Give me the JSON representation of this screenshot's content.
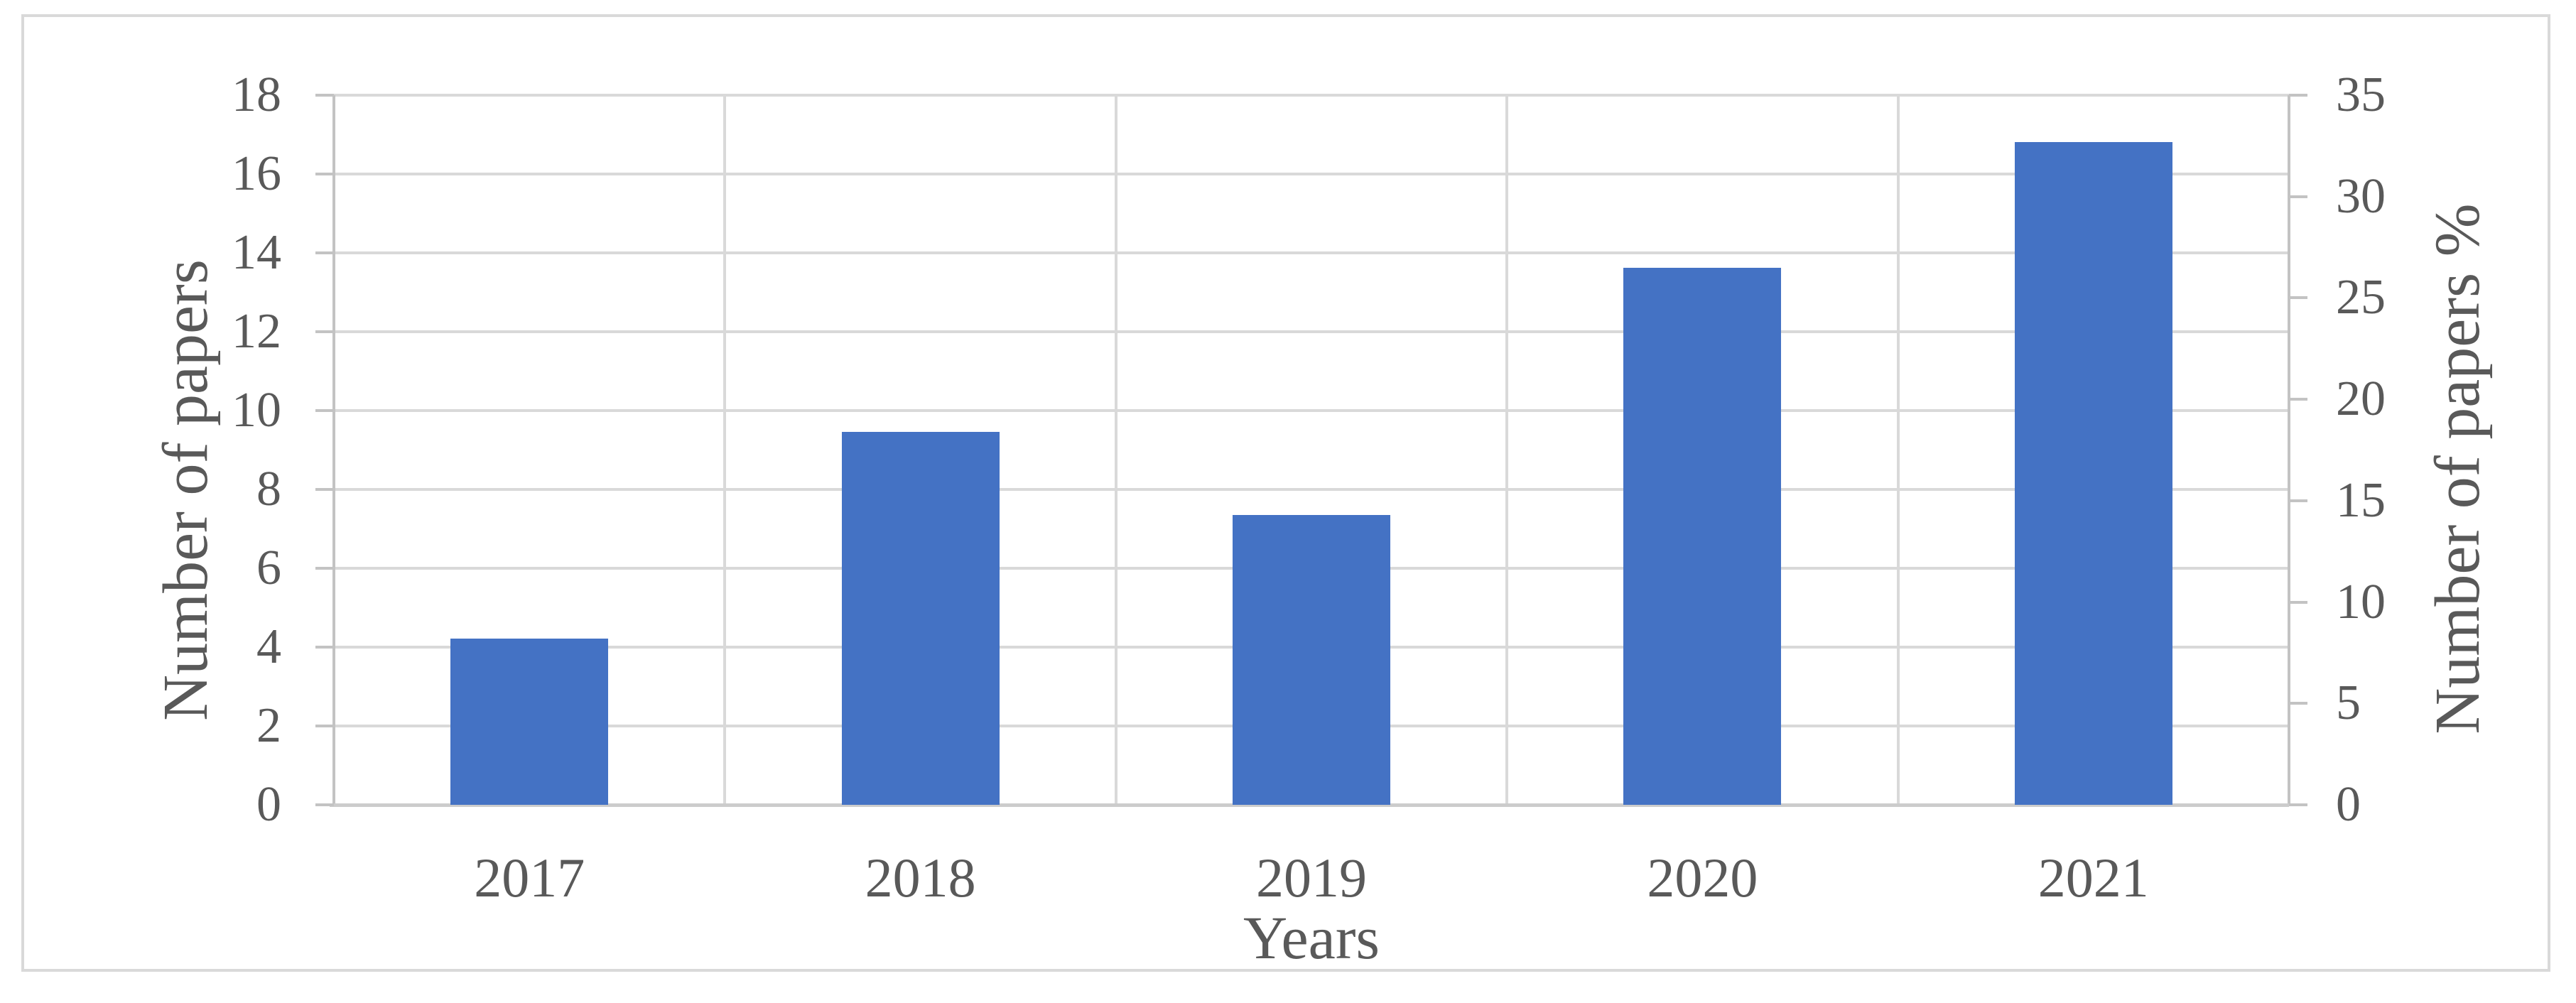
{
  "figure": {
    "left_axis_title": "Number of papers",
    "right_axis_title": "Number of papers %",
    "x_axis_title": "Years"
  },
  "chart_data": {
    "type": "bar",
    "title": "",
    "categories": [
      "2017",
      "2018",
      "2019",
      "2020",
      "2021"
    ],
    "series": [
      {
        "name": "Number of papers %",
        "axis": "right",
        "values": [
          8.2,
          18.4,
          14.3,
          26.5,
          32.7
        ]
      }
    ],
    "values_on_left_axis_scale": [
      4.2,
      9.45,
      7.35,
      13.65,
      16.8
    ],
    "left_axis": {
      "label": "Number of papers",
      "min": 0,
      "max": 18,
      "step": 2,
      "ticks": [
        0,
        2,
        4,
        6,
        8,
        10,
        12,
        14,
        16,
        18
      ]
    },
    "right_axis": {
      "label": "Number of papers %",
      "min": 0,
      "max": 35,
      "step": 5,
      "ticks": [
        0,
        5,
        10,
        15,
        20,
        25,
        30,
        35
      ]
    },
    "x_axis": {
      "label": "Years"
    },
    "grid": true,
    "legend": false,
    "bar_color": "#4472C4"
  },
  "colors": {
    "bar": "#4472C4",
    "gridline": "#D9D9D9",
    "axis_line": "#C3C3C3",
    "tick_mark": "#C3C3C3",
    "text": "#595959",
    "border": "#D9D9D9",
    "background": "#FFFFFF"
  }
}
